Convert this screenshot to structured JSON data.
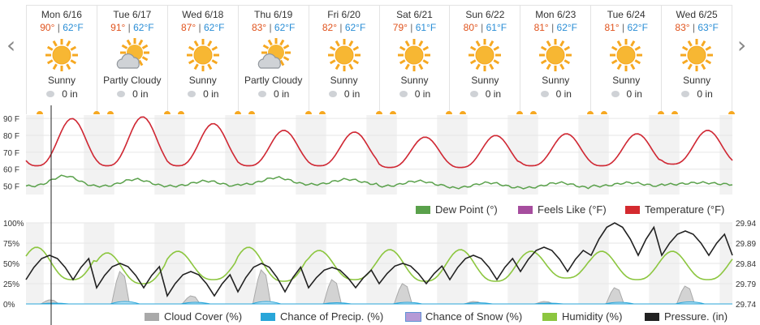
{
  "nav": {
    "prev_icon": "chevron-left-icon",
    "next_icon": "chevron-right-icon"
  },
  "days": [
    {
      "label": "Mon 6/16",
      "hi": "90°",
      "lo": "62°F",
      "cond": "Sunny",
      "icon": "sunny",
      "precip": "0 in"
    },
    {
      "label": "Tue 6/17",
      "hi": "91°",
      "lo": "62°F",
      "cond": "Partly Cloudy",
      "icon": "partly-cloudy",
      "precip": "0 in"
    },
    {
      "label": "Wed 6/18",
      "hi": "87°",
      "lo": "62°F",
      "cond": "Sunny",
      "icon": "sunny",
      "precip": "0 in"
    },
    {
      "label": "Thu 6/19",
      "hi": "83°",
      "lo": "62°F",
      "cond": "Partly Cloudy",
      "icon": "partly-cloudy",
      "precip": "0 in"
    },
    {
      "label": "Fri 6/20",
      "hi": "82°",
      "lo": "62°F",
      "cond": "Sunny",
      "icon": "sunny",
      "precip": "0 in"
    },
    {
      "label": "Sat 6/21",
      "hi": "79°",
      "lo": "61°F",
      "cond": "Sunny",
      "icon": "sunny",
      "precip": "0 in"
    },
    {
      "label": "Sun 6/22",
      "hi": "80°",
      "lo": "61°F",
      "cond": "Sunny",
      "icon": "sunny",
      "precip": "0 in"
    },
    {
      "label": "Mon 6/23",
      "hi": "81°",
      "lo": "62°F",
      "cond": "Sunny",
      "icon": "sunny",
      "precip": "0 in"
    },
    {
      "label": "Tue 6/24",
      "hi": "81°",
      "lo": "62°F",
      "cond": "Sunny",
      "icon": "sunny",
      "precip": "0 in"
    },
    {
      "label": "Wed 6/25",
      "hi": "83°",
      "lo": "63°F",
      "cond": "Sunny",
      "icon": "sunny",
      "precip": "0 in"
    }
  ],
  "colors": {
    "hi": "#e0531d",
    "lo": "#2a8ed6",
    "temperature": "#d42a2f",
    "feels_like": "#a64d9e",
    "dew_point": "#5aa14b",
    "cloud_cover": "#a9a9a9",
    "precip": "#29a6d9",
    "snow": "#b59ad6",
    "humidity": "#8cc63f",
    "pressure": "#222222",
    "night_band": "#f2f2f2",
    "sun": "#f6a821"
  },
  "chart_data": [
    {
      "type": "line",
      "y_ticks": [
        "90 F",
        "80 F",
        "70 F",
        "60 F",
        "50 F"
      ],
      "ylim": [
        45,
        92
      ],
      "grid": true,
      "legend_position": "bottom-right",
      "x_days": [
        "Mon 6/16",
        "Tue 6/17",
        "Wed 6/18",
        "Thu 6/19",
        "Fri 6/20",
        "Sat 6/21",
        "Sun 6/22",
        "Mon 6/23",
        "Tue 6/24",
        "Wed 6/25"
      ],
      "series": [
        {
          "name": "Dew Point (°)",
          "key": "dew_point",
          "daily_range": [
            [
              50,
              56
            ],
            [
              50,
              54
            ],
            [
              50,
              53
            ],
            [
              51,
              55
            ],
            [
              51,
              54
            ],
            [
              50,
              53
            ],
            [
              49,
              52
            ],
            [
              49,
              52
            ],
            [
              50,
              52
            ],
            [
              51,
              52
            ]
          ]
        },
        {
          "name": "Feels Like (°F)",
          "key": "feels_like",
          "daily_range": [
            [
              62,
              90
            ],
            [
              62,
              91
            ],
            [
              62,
              87
            ],
            [
              62,
              83
            ],
            [
              62,
              82
            ],
            [
              61,
              79
            ],
            [
              61,
              80
            ],
            [
              62,
              81
            ],
            [
              62,
              81
            ],
            [
              63,
              83
            ]
          ]
        },
        {
          "name": "Temperature (°F)",
          "key": "temperature",
          "daily_range": [
            [
              62,
              90
            ],
            [
              62,
              91
            ],
            [
              62,
              87
            ],
            [
              62,
              83
            ],
            [
              62,
              82
            ],
            [
              61,
              79
            ],
            [
              61,
              80
            ],
            [
              62,
              81
            ],
            [
              62,
              81
            ],
            [
              63,
              83
            ]
          ]
        }
      ]
    },
    {
      "type": "area",
      "y_ticks_left": [
        "100%",
        "75%",
        "50%",
        "25%",
        "0%"
      ],
      "y_ticks_right": [
        "29.94",
        "29.89",
        "29.84",
        "29.79",
        "29.74"
      ],
      "ylim_left": [
        0,
        100
      ],
      "ylim_right": [
        29.74,
        29.94
      ],
      "grid": true,
      "legend_position": "bottom",
      "series": [
        {
          "name": "Cloud Cover (%)",
          "key": "cloud_cover",
          "daily_peak": [
            5,
            40,
            10,
            42,
            30,
            25,
            3,
            3,
            20,
            22
          ]
        },
        {
          "name": "Chance of Precip. (%)",
          "key": "precip",
          "daily_peak": [
            2,
            6,
            4,
            6,
            3,
            4,
            3,
            2,
            4,
            5
          ]
        },
        {
          "name": "Chance of Snow (%)",
          "key": "snow",
          "daily_peak": [
            0,
            0,
            0,
            0,
            0,
            0,
            0,
            0,
            0,
            0
          ]
        },
        {
          "name": "Humidity (%)",
          "key": "humidity",
          "daily_range": [
            [
              30,
              70
            ],
            [
              25,
              63
            ],
            [
              30,
              65
            ],
            [
              28,
              70
            ],
            [
              30,
              66
            ],
            [
              28,
              67
            ],
            [
              28,
              67
            ],
            [
              32,
              65
            ],
            [
              30,
              65
            ],
            [
              30,
              65
            ]
          ]
        },
        {
          "name": "Pressure. (in)",
          "key": "pressure",
          "daily_range": [
            [
              29.8,
              29.86
            ],
            [
              29.78,
              29.84
            ],
            [
              29.76,
              29.82
            ],
            [
              29.77,
              29.84
            ],
            [
              29.78,
              29.83
            ],
            [
              29.79,
              29.84
            ],
            [
              29.8,
              29.86
            ],
            [
              29.82,
              29.88
            ],
            [
              29.86,
              29.94
            ],
            [
              29.86,
              29.92
            ]
          ]
        }
      ]
    }
  ]
}
